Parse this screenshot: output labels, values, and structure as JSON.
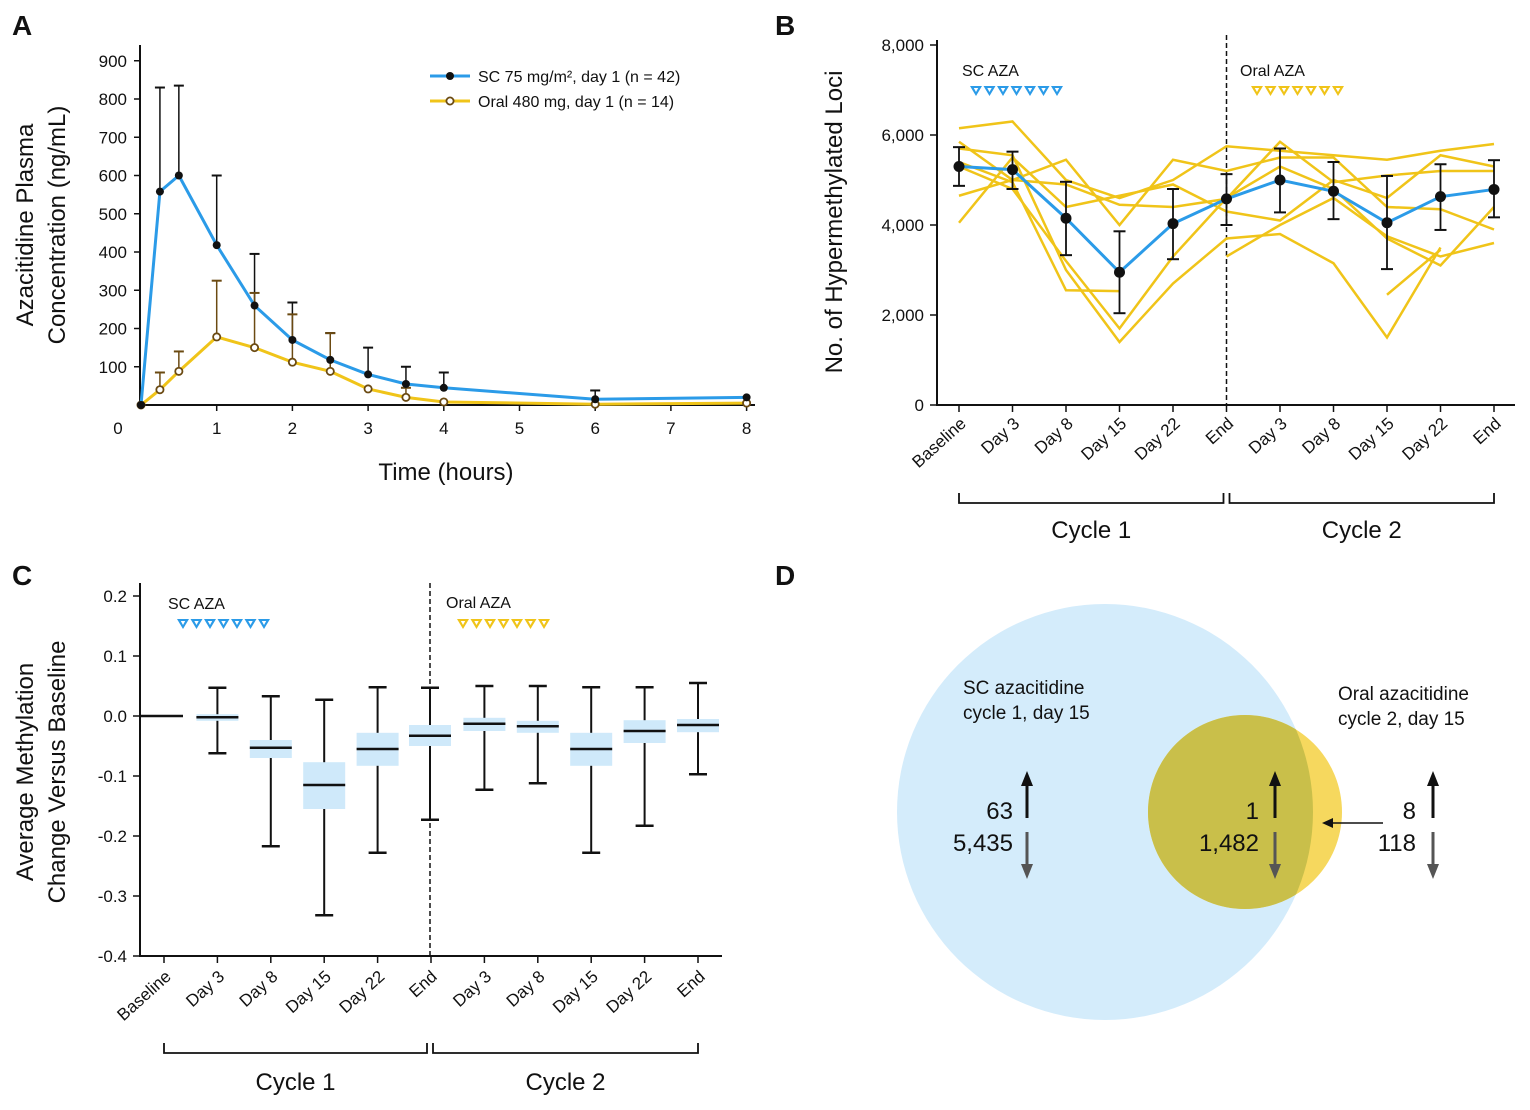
{
  "colors": {
    "sc_blue": "#2b9be8",
    "oral_yellow": "#f0c419",
    "oral_error_brown": "#6b4a12",
    "box_fill": "#cfe9fa",
    "venn_sc": "#d4ecfb",
    "venn_oral": "#f6d85e",
    "venn_overlap": "#c9bf4a"
  },
  "chart_data": [
    {
      "panel": "A",
      "type": "line",
      "xlabel": "Time (hours)",
      "ylabel": [
        "Azacitidine Plasma",
        "Concentration (ng/mL)"
      ],
      "xlim": [
        0,
        8
      ],
      "ylim": [
        0,
        900
      ],
      "xticks": [
        0,
        1,
        2,
        3,
        4,
        5,
        6,
        7,
        8
      ],
      "yticks": [
        100,
        200,
        300,
        400,
        500,
        600,
        700,
        800,
        900
      ],
      "grid": false,
      "legend_position": "top-right",
      "series": [
        {
          "name": "SC 75 mg/m², day 1 (n = 42)",
          "color": "#2b9be8",
          "marker": "filled-circle",
          "x": [
            0,
            0.25,
            0.5,
            1,
            1.5,
            2,
            2.5,
            3,
            3.5,
            4,
            6,
            8
          ],
          "y": [
            0,
            558,
            600,
            418,
            260,
            170,
            118,
            80,
            55,
            45,
            15,
            20
          ],
          "error_upper": [
            null,
            830,
            835,
            600,
            395,
            268,
            188,
            150,
            100,
            85,
            38,
            null
          ]
        },
        {
          "name": "Oral 480 mg, day 1 (n = 14)",
          "color": "#f0c419",
          "marker": "open-circle",
          "x": [
            0,
            0.25,
            0.5,
            1,
            1.5,
            2,
            2.5,
            3,
            3.5,
            4,
            6,
            8
          ],
          "y": [
            0,
            40,
            88,
            178,
            150,
            112,
            88,
            42,
            20,
            8,
            2,
            5
          ],
          "error_upper": [
            null,
            85,
            140,
            325,
            293,
            237,
            188,
            null,
            45,
            null,
            null,
            null
          ]
        }
      ]
    },
    {
      "panel": "B",
      "type": "line",
      "ylabel": "No. of Hypermethylated Loci",
      "ylim": [
        0,
        8000
      ],
      "yticks": [
        "0",
        "2,000",
        "4,000",
        "6,000",
        "8,000"
      ],
      "yticks_values": [
        0,
        2000,
        4000,
        6000,
        8000
      ],
      "categories": [
        "Baseline",
        "Day 3",
        "Day 8",
        "Day 15",
        "Day 22",
        "End",
        "Day 3",
        "Day 8",
        "Day 15",
        "Day 22",
        "End"
      ],
      "groups": [
        {
          "label": "Cycle 1",
          "from": 0,
          "to": 5
        },
        {
          "label": "Cycle 2",
          "from": 5,
          "to": 10
        }
      ],
      "annotations": [
        {
          "text": "SC AZA",
          "color": "#2b9be8",
          "count": 7
        },
        {
          "text": "Oral AZA",
          "color": "#f0c419",
          "count": 7
        }
      ],
      "mean": {
        "color": "#2b9be8",
        "y": [
          5300,
          5230,
          4150,
          2950,
          4030,
          4580,
          5000,
          4750,
          4050,
          4630,
          4790
        ],
        "error_upper": [
          5730,
          5630,
          4960,
          3860,
          4800,
          5130,
          5700,
          5400,
          5090,
          5350,
          5440
        ],
        "error_lower": [
          4870,
          4800,
          3330,
          2040,
          3240,
          4000,
          4280,
          4130,
          3020,
          3890,
          4170
        ]
      },
      "individuals": [
        [
          6150,
          6300,
          5000,
          4600,
          5000,
          5750,
          5650,
          5550,
          5450,
          5650,
          5800
        ],
        [
          5850,
          5000,
          4900,
          4450,
          4400,
          4580,
          5850,
          4950,
          5100,
          5200,
          5200
        ],
        [
          4650,
          5000,
          5450,
          4000,
          5450,
          5200,
          5500,
          5500,
          4400,
          4350,
          3900
        ],
        [
          4050,
          5500,
          4400,
          4650,
          4900,
          4300,
          4100,
          5000,
          4600,
          5550,
          5300
        ],
        [
          5300,
          4800,
          3200,
          1700,
          3300,
          4600,
          5300,
          4800,
          3700,
          3100,
          4400
        ],
        [
          5400,
          4950,
          2550,
          2530,
          null,
          null,
          null,
          null,
          null,
          null,
          null
        ],
        [
          5700,
          5550,
          3000,
          1400,
          2700,
          3700,
          3800,
          3150,
          1500,
          3500,
          null
        ],
        [
          null,
          null,
          null,
          null,
          null,
          3300,
          4000,
          4600,
          3750,
          3300,
          3600
        ],
        [
          null,
          null,
          null,
          null,
          null,
          null,
          null,
          null,
          2450,
          3450,
          null
        ]
      ]
    },
    {
      "panel": "C",
      "type": "box",
      "ylabel": [
        "Average Methylation",
        "Change Versus Baseline"
      ],
      "ylim": [
        -0.4,
        0.2
      ],
      "yticks": [
        "0.2",
        "0.1",
        "0.0",
        "-0.1",
        "-0.2",
        "-0.3",
        "-0.4"
      ],
      "yticks_values": [
        0.2,
        0.1,
        0.0,
        -0.1,
        -0.2,
        -0.3,
        -0.4
      ],
      "categories": [
        "Baseline",
        "Day 3",
        "Day 8",
        "Day 15",
        "Day 22",
        "End",
        "Day 3",
        "Day 8",
        "Day 15",
        "Day 22",
        "End"
      ],
      "groups": [
        {
          "label": "Cycle 1",
          "from": 0,
          "to": 5
        },
        {
          "label": "Cycle 2",
          "from": 5,
          "to": 10
        }
      ],
      "annotations": [
        {
          "text": "SC AZA",
          "color": "#2b9be8",
          "count": 7
        },
        {
          "text": "Oral AZA",
          "color": "#f0c419",
          "count": 7
        }
      ],
      "boxes": [
        {
          "median": 0,
          "q3": null,
          "q1": null,
          "max": null,
          "min": null
        },
        {
          "median": -0.002,
          "q3": 0.003,
          "q1": -0.008,
          "max": 0.047,
          "min": -0.062
        },
        {
          "median": -0.053,
          "q3": -0.04,
          "q1": -0.07,
          "max": 0.033,
          "min": -0.217
        },
        {
          "median": -0.115,
          "q3": -0.077,
          "q1": -0.155,
          "max": 0.027,
          "min": -0.332
        },
        {
          "median": -0.055,
          "q3": -0.028,
          "q1": -0.083,
          "max": 0.048,
          "min": -0.228
        },
        {
          "median": -0.033,
          "q3": -0.015,
          "q1": -0.05,
          "max": 0.047,
          "min": -0.173
        },
        {
          "median": -0.013,
          "q3": -0.003,
          "q1": -0.025,
          "max": 0.05,
          "min": -0.123
        },
        {
          "median": -0.017,
          "q3": -0.008,
          "q1": -0.028,
          "max": 0.05,
          "min": -0.112
        },
        {
          "median": -0.055,
          "q3": -0.028,
          "q1": -0.083,
          "max": 0.048,
          "min": -0.228
        },
        {
          "median": -0.025,
          "q3": -0.007,
          "q1": -0.045,
          "max": 0.048,
          "min": -0.183
        },
        {
          "median": -0.015,
          "q3": -0.005,
          "q1": -0.027,
          "max": 0.055,
          "min": -0.097
        }
      ]
    },
    {
      "panel": "D",
      "type": "venn",
      "sets": [
        {
          "label": [
            "SC azacitidine",
            "cycle 1, day 15"
          ],
          "up": "63",
          "down": "5,435"
        },
        {
          "label": [
            "Oral azacitidine",
            "cycle 2, day 15"
          ],
          "up": "8",
          "down": "118"
        }
      ],
      "overlap": {
        "up": "1",
        "down": "1,482"
      }
    }
  ],
  "panel_letters": [
    "A",
    "B",
    "C",
    "D"
  ]
}
